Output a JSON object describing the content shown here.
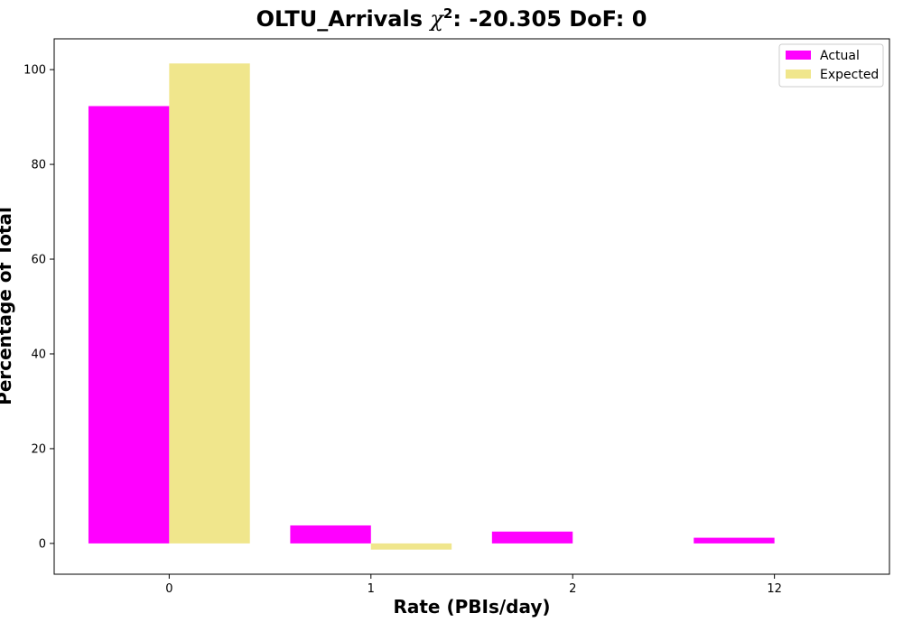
{
  "chart_data": {
    "type": "bar",
    "title_prefix": "OLTU_Arrivals ",
    "title_chi": "χ",
    "title_exp": "2",
    "title_suffix": ": -20.305 DoF: 0",
    "xlabel": "Rate (PBIs/day)",
    "ylabel": "Percentage of Total",
    "categories": [
      "0",
      "1",
      "2",
      "12"
    ],
    "series": [
      {
        "name": "Actual",
        "color": "#ff00ff",
        "values": [
          92.3,
          3.8,
          2.5,
          1.2
        ]
      },
      {
        "name": "Expected",
        "color": "#f0e68c",
        "values": [
          101.3,
          -1.3,
          0,
          0
        ]
      }
    ],
    "ylim": [
      -6.5,
      106.5
    ],
    "yticks": [
      0,
      20,
      40,
      60,
      80,
      100
    ],
    "legend_position": "top-right",
    "grid": false
  }
}
